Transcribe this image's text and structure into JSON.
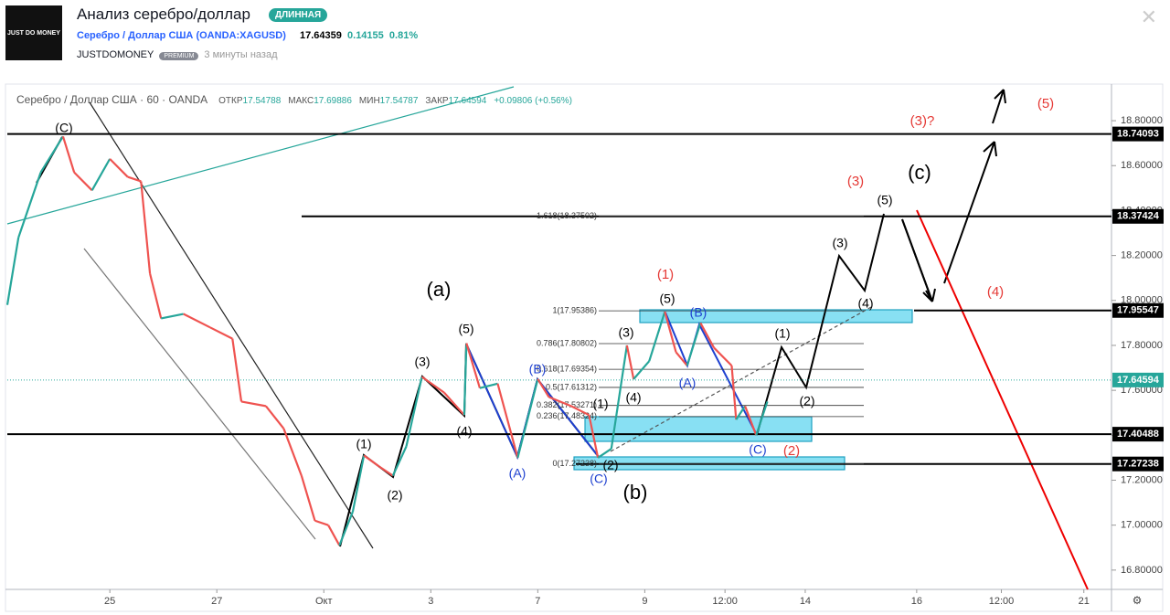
{
  "header": {
    "logo": "JUST DO MONEY",
    "title": "Анализ серебро/доллар",
    "badge": "ДЛИННАЯ",
    "symbol_name": "Серебро / Доллар США",
    "symbol_code": "OANDA:XAGUSD",
    "price": "17.64359",
    "change": "0.14155",
    "change_pct": "0.81%",
    "author": "JUSTDOMONEY",
    "author_badge": "PREMIUM",
    "time": "3 минуты назад"
  },
  "legend": {
    "symbol": "Серебро / Доллар США · 60 · OANDA",
    "open_label": "ОТКР",
    "open": "17.54788",
    "high_label": "МАКС",
    "high": "17.69886",
    "low_label": "МИН",
    "low": "17.54787",
    "close_label": "ЗАКР",
    "close": "17.64594",
    "change": "+0.09806 (+0.56%)"
  },
  "chart_data": {
    "type": "line",
    "up_color": "#26a69a",
    "down_color": "#ef5350",
    "x": [
      0,
      5,
      15,
      25,
      30,
      38,
      46,
      54,
      60,
      64,
      69,
      79,
      91,
      101,
      105,
      116,
      124,
      132,
      138,
      144,
      149,
      155,
      160,
      167,
      173,
      179,
      186,
      196,
      205,
      206,
      212,
      220,
      229,
      238,
      243,
      253,
      261,
      265,
      271,
      278,
      281,
      288,
      295,
      300,
      305,
      311,
      317,
      325,
      327,
      331,
      336,
      341
    ],
    "values": [
      17.98,
      18.28,
      18.57,
      18.73,
      18.57,
      18.49,
      18.63,
      18.55,
      18.53,
      18.12,
      17.92,
      17.94,
      17.88,
      17.83,
      17.55,
      17.53,
      17.43,
      17.22,
      17.02,
      17.0,
      16.91,
      17.06,
      17.31,
      17.26,
      17.22,
      17.35,
      17.66,
      17.59,
      17.49,
      17.81,
      17.61,
      17.63,
      17.3,
      17.65,
      17.57,
      17.53,
      17.49,
      17.3,
      17.34,
      17.8,
      17.65,
      17.73,
      17.95,
      17.77,
      17.71,
      17.9,
      17.79,
      17.71,
      17.47,
      17.53,
      17.4,
      17.55
    ],
    "xlim": [
      0,
      495
    ],
    "ylim": [
      16.714,
      18.963
    ],
    "xticks": [
      {
        "value": 46,
        "label": "25"
      },
      {
        "value": 94,
        "label": "27"
      },
      {
        "value": 142,
        "label": "Окт"
      },
      {
        "value": 190,
        "label": "3"
      },
      {
        "value": 238,
        "label": "7"
      },
      {
        "value": 286,
        "label": "9"
      },
      {
        "value": 322,
        "label": "12:00"
      },
      {
        "value": 358,
        "label": "14"
      },
      {
        "value": 408,
        "label": "16"
      },
      {
        "value": 446,
        "label": "12:00"
      },
      {
        "value": 483,
        "label": "21"
      }
    ],
    "yticks": [
      {
        "value": 16.8,
        "label": "16.80000"
      },
      {
        "value": 17.0,
        "label": "17.00000"
      },
      {
        "value": 17.2,
        "label": "17.20000"
      },
      {
        "value": 17.4,
        "label": "17.40000"
      },
      {
        "value": 17.6,
        "label": "17.60000"
      },
      {
        "value": 17.8,
        "label": "17.80000"
      },
      {
        "value": 18.0,
        "label": "18.00000"
      },
      {
        "value": 18.2,
        "label": "18.20000"
      },
      {
        "value": 18.4,
        "label": "18.40000"
      },
      {
        "value": 18.6,
        "label": "18.60000"
      },
      {
        "value": 18.8,
        "label": "18.80000"
      }
    ],
    "levels": [
      18.74093,
      18.37424,
      17.95547,
      17.64594,
      17.40488,
      17.27238
    ],
    "fib": [
      {
        "value": 18.37502,
        "label": "1.618(18.37502)"
      },
      {
        "value": 17.95386,
        "label": "1(17.95386)"
      },
      {
        "value": 17.80802,
        "label": "0.786(17.80802)"
      },
      {
        "value": 17.69354,
        "label": "0.618(17.69354)"
      },
      {
        "value": 17.61312,
        "label": "0.5(17.61312)"
      },
      {
        "value": 17.53271,
        "label": "0.382(17.53271)"
      },
      {
        "value": 17.48324,
        "label": "0.236(17.48324)"
      },
      {
        "value": 17.27238,
        "label": "0(17.27238)"
      }
    ],
    "annotations": [
      "(C)",
      "(a)",
      "(1)",
      "(2)",
      "(3)",
      "(4)",
      "(5)",
      "(A)",
      "(B)",
      "(C)",
      "(1)",
      "(2)",
      "(b)",
      "(3)",
      "(4)",
      "(5)",
      "(1)",
      "(A)",
      "(B)",
      "(C)",
      "(2)",
      "(1)",
      "(2)",
      "(3)",
      "(4)",
      "(5)",
      "(3)",
      "(c)",
      "(3)?",
      "(5)",
      "(4)"
    ]
  }
}
